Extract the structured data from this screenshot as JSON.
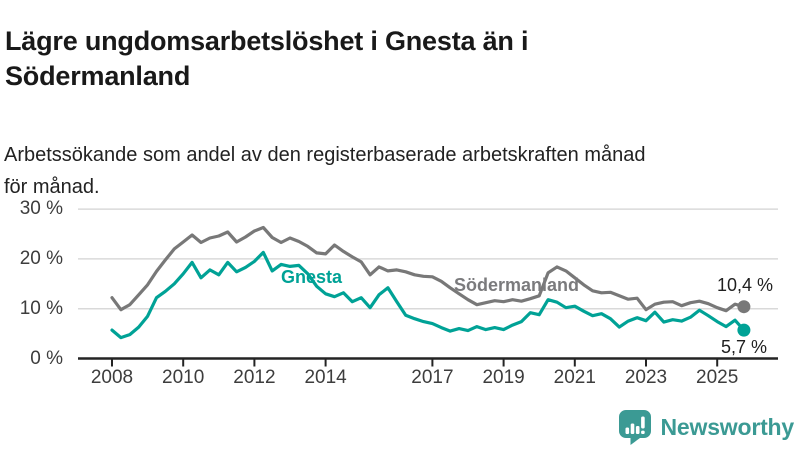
{
  "header": {
    "title_lines": [
      "Lägre ungdomsarbetslöshet i Gnesta än i",
      "Södermanland"
    ],
    "subtitle_lines": [
      "Arbetssökande som andel av den registerbaserade arbetskraften månad",
      "för månad."
    ]
  },
  "chart_data": {
    "type": "line",
    "title": "Lägre ungdomsarbetslöshet i Gnesta än i Södermanland",
    "subtitle": "Arbetssökande som andel av den registerbaserade arbetskraften månad för månad.",
    "x_unit": "year",
    "y_unit": "%",
    "x_start": 2008,
    "x_step": 0.25,
    "xlim": [
      2008,
      2025.75
    ],
    "ylim": [
      0,
      30
    ],
    "grid": true,
    "legend": "inline-labels",
    "x_axis": {
      "ticks": [
        2008,
        2010,
        2012,
        2014,
        2017,
        2019,
        2021,
        2023,
        2025
      ]
    },
    "y_axis": {
      "ticks": [
        {
          "label": "30 %",
          "value": 30
        },
        {
          "label": "20 %",
          "value": 20
        },
        {
          "label": "10 %",
          "value": 10
        },
        {
          "label": "0 %",
          "value": 0
        }
      ]
    },
    "series": [
      {
        "name": "Gnesta",
        "color": "#00a296",
        "end_label": "5,7 %",
        "latest_value": 5.7,
        "values": [
          5.7,
          4.2,
          4.8,
          6.3,
          8.5,
          12.2,
          13.5,
          15.0,
          17.0,
          19.3,
          16.2,
          17.8,
          16.8,
          19.3,
          17.4,
          18.3,
          19.5,
          21.3,
          17.6,
          18.9,
          18.5,
          18.7,
          17.0,
          14.5,
          13.0,
          12.4,
          13.2,
          11.4,
          12.2,
          10.2,
          12.8,
          14.2,
          11.4,
          8.7,
          8.0,
          7.4,
          7.0,
          6.2,
          5.5,
          6.0,
          5.6,
          6.4,
          5.8,
          6.2,
          5.8,
          6.7,
          7.4,
          9.2,
          8.8,
          11.8,
          11.3,
          10.2,
          10.5,
          9.5,
          8.6,
          9.0,
          8.0,
          6.3,
          7.5,
          8.2,
          7.6,
          9.3,
          7.3,
          7.8,
          7.5,
          8.3,
          9.7,
          8.6,
          7.4,
          6.4,
          7.7,
          5.7
        ]
      },
      {
        "name": "Södermanland",
        "color": "#787878",
        "end_label": "10,4 %",
        "latest_value": 10.4,
        "values": [
          12.2,
          9.8,
          10.8,
          12.8,
          14.8,
          17.5,
          19.8,
          22.0,
          23.4,
          24.8,
          23.3,
          24.2,
          24.6,
          25.4,
          23.4,
          24.4,
          25.6,
          26.3,
          24.3,
          23.3,
          24.2,
          23.5,
          22.5,
          21.2,
          21.0,
          22.8,
          21.5,
          20.4,
          19.4,
          16.8,
          18.4,
          17.6,
          17.8,
          17.4,
          16.8,
          16.5,
          16.4,
          15.5,
          14.2,
          13.0,
          11.8,
          10.8,
          11.2,
          11.6,
          11.4,
          11.8,
          11.5,
          12.0,
          12.6,
          17.2,
          18.4,
          17.6,
          16.2,
          14.8,
          13.6,
          13.2,
          13.3,
          12.6,
          11.9,
          12.1,
          9.8,
          10.9,
          11.3,
          11.4,
          10.6,
          11.2,
          11.5,
          11.0,
          10.2,
          9.6,
          10.9,
          10.4
        ]
      }
    ],
    "colors": {
      "grid": "#d9d9d9",
      "axis": "#242424",
      "tick_text": "#3d3d3d",
      "annotation_text": "#1f1f1f"
    }
  },
  "footer": {
    "brand": "Newsworthy",
    "brand_color": "#3b9a94"
  }
}
